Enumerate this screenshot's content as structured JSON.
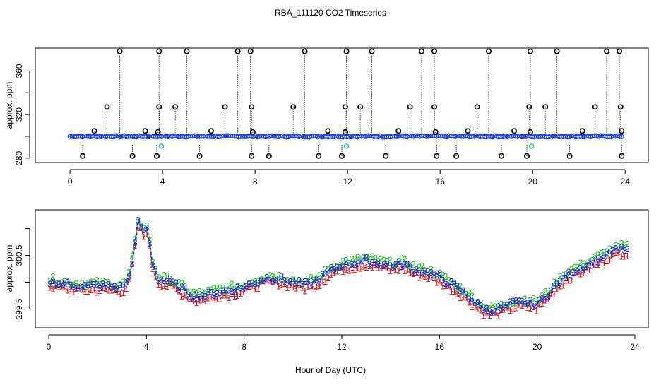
{
  "chart_data": [
    {
      "type": "scatter",
      "title": "RBA_111120  CO2 Timeseries",
      "xlabel": "",
      "ylabel": "approx. ppm",
      "xlim": [
        -1.5,
        25.0
      ],
      "ylim": [
        276,
        381
      ],
      "xticks": [
        0,
        4,
        8,
        12,
        16,
        20,
        24
      ],
      "yticks": [
        280,
        320,
        360
      ],
      "baseline": 300,
      "marker_colors": {
        "spike": "#000000",
        "baseline": "#1f3fd8",
        "low": "#20c0c0"
      },
      "spikes": [
        {
          "x": 2.15,
          "y": 378
        },
        {
          "x": 3.85,
          "y": 378
        },
        {
          "x": 5.05,
          "y": 378
        },
        {
          "x": 7.25,
          "y": 378
        },
        {
          "x": 7.8,
          "y": 378
        },
        {
          "x": 10.15,
          "y": 378
        },
        {
          "x": 11.95,
          "y": 378
        },
        {
          "x": 13.05,
          "y": 378
        },
        {
          "x": 15.2,
          "y": 378
        },
        {
          "x": 15.75,
          "y": 378
        },
        {
          "x": 18.1,
          "y": 378
        },
        {
          "x": 19.9,
          "y": 378
        },
        {
          "x": 21.05,
          "y": 378
        },
        {
          "x": 23.2,
          "y": 378
        },
        {
          "x": 23.75,
          "y": 378
        },
        {
          "x": 1.6,
          "y": 327
        },
        {
          "x": 3.85,
          "y": 327
        },
        {
          "x": 4.55,
          "y": 327
        },
        {
          "x": 6.7,
          "y": 327
        },
        {
          "x": 7.85,
          "y": 327
        },
        {
          "x": 9.65,
          "y": 327
        },
        {
          "x": 11.9,
          "y": 327
        },
        {
          "x": 12.55,
          "y": 327
        },
        {
          "x": 14.7,
          "y": 327
        },
        {
          "x": 15.75,
          "y": 327
        },
        {
          "x": 17.6,
          "y": 327
        },
        {
          "x": 19.85,
          "y": 327
        },
        {
          "x": 20.55,
          "y": 327
        },
        {
          "x": 22.7,
          "y": 327
        },
        {
          "x": 23.8,
          "y": 327
        },
        {
          "x": 1.05,
          "y": 305
        },
        {
          "x": 3.25,
          "y": 305
        },
        {
          "x": 3.8,
          "y": 304
        },
        {
          "x": 6.1,
          "y": 305
        },
        {
          "x": 7.9,
          "y": 304
        },
        {
          "x": 11.15,
          "y": 305
        },
        {
          "x": 11.9,
          "y": 304
        },
        {
          "x": 14.2,
          "y": 305
        },
        {
          "x": 15.8,
          "y": 304
        },
        {
          "x": 17.2,
          "y": 305
        },
        {
          "x": 19.2,
          "y": 305
        },
        {
          "x": 19.9,
          "y": 304
        },
        {
          "x": 22.15,
          "y": 305
        },
        {
          "x": 23.85,
          "y": 305
        },
        {
          "x": 0.55,
          "y": 282
        },
        {
          "x": 2.7,
          "y": 282
        },
        {
          "x": 3.75,
          "y": 282
        },
        {
          "x": 5.6,
          "y": 282
        },
        {
          "x": 7.85,
          "y": 282
        },
        {
          "x": 8.6,
          "y": 282
        },
        {
          "x": 10.75,
          "y": 282
        },
        {
          "x": 11.75,
          "y": 282
        },
        {
          "x": 13.65,
          "y": 282
        },
        {
          "x": 15.85,
          "y": 282
        },
        {
          "x": 16.7,
          "y": 282
        },
        {
          "x": 18.65,
          "y": 282
        },
        {
          "x": 19.75,
          "y": 282
        },
        {
          "x": 21.6,
          "y": 282
        },
        {
          "x": 23.85,
          "y": 282
        }
      ],
      "low_points": [
        {
          "x": 3.95,
          "y": 291
        },
        {
          "x": 11.95,
          "y": 291
        },
        {
          "x": 19.95,
          "y": 291
        }
      ]
    },
    {
      "type": "line",
      "title": "",
      "xlabel": "Hour of Day (UTC)",
      "ylabel": "approx. ppm",
      "xlim": [
        -0.55,
        24.55
      ],
      "ylim": [
        299.15,
        301.35
      ],
      "xticks": [
        0,
        4,
        8,
        12,
        16,
        20,
        24
      ],
      "yticks": [
        299.5,
        300.5
      ],
      "series": [
        {
          "symbol": "1",
          "color": "#dd1f1f",
          "offset": -0.08
        },
        {
          "symbol": "2",
          "color": "#22c022",
          "offset": 0.05
        },
        {
          "symbol": "3",
          "color": "#1f28d8",
          "offset": 0.0
        }
      ],
      "knots": [
        [
          0.0,
          300.0
        ],
        [
          0.5,
          299.97
        ],
        [
          1.0,
          299.93
        ],
        [
          1.5,
          299.92
        ],
        [
          2.0,
          299.93
        ],
        [
          2.5,
          299.92
        ],
        [
          3.0,
          299.9
        ],
        [
          3.25,
          300.0
        ],
        [
          3.5,
          300.6
        ],
        [
          3.68,
          301.2
        ],
        [
          3.85,
          300.9
        ],
        [
          4.05,
          301.05
        ],
        [
          4.2,
          300.4
        ],
        [
          4.5,
          300.05
        ],
        [
          5.0,
          300.0
        ],
        [
          5.5,
          299.85
        ],
        [
          6.0,
          299.72
        ],
        [
          6.5,
          299.76
        ],
        [
          7.0,
          299.82
        ],
        [
          7.5,
          299.85
        ],
        [
          8.0,
          299.9
        ],
        [
          8.5,
          300.0
        ],
        [
          9.0,
          300.08
        ],
        [
          9.5,
          300.05
        ],
        [
          10.0,
          300.0
        ],
        [
          10.5,
          299.95
        ],
        [
          11.0,
          300.02
        ],
        [
          11.5,
          300.2
        ],
        [
          12.0,
          300.32
        ],
        [
          12.5,
          300.35
        ],
        [
          13.0,
          300.4
        ],
        [
          13.5,
          300.35
        ],
        [
          14.0,
          300.3
        ],
        [
          14.5,
          300.33
        ],
        [
          15.0,
          300.22
        ],
        [
          15.5,
          300.18
        ],
        [
          16.0,
          300.08
        ],
        [
          16.5,
          299.95
        ],
        [
          17.0,
          299.8
        ],
        [
          17.5,
          299.6
        ],
        [
          18.0,
          299.46
        ],
        [
          18.5,
          299.5
        ],
        [
          19.0,
          299.6
        ],
        [
          19.5,
          299.62
        ],
        [
          20.0,
          299.58
        ],
        [
          20.5,
          299.8
        ],
        [
          21.0,
          300.05
        ],
        [
          21.5,
          300.2
        ],
        [
          22.0,
          300.3
        ],
        [
          22.5,
          300.42
        ],
        [
          23.0,
          300.55
        ],
        [
          23.5,
          300.62
        ],
        [
          23.7,
          300.6
        ]
      ]
    }
  ]
}
